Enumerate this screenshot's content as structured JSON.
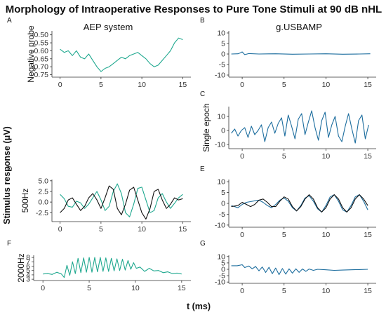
{
  "title": "Morphology of Intraoperative Responses to Pure Tone Stimuli at 90 dB nHL",
  "column_titles": [
    "AEP system",
    "g.USBAMP"
  ],
  "y_label": "Stimulus response (μV)",
  "x_label": "t (ms)",
  "colors": {
    "teal": "#1fa88f",
    "blue": "#1c6d9e",
    "black": "#111111"
  },
  "chart_data": [
    {
      "id": "A",
      "panel": "A",
      "type": "line",
      "ylabel": "Negative probe",
      "xlim": [
        -1,
        16
      ],
      "ylim": [
        -0.765,
        -0.475
      ],
      "xticks": [
        0,
        5,
        10,
        15
      ],
      "yticks": [
        -0.5,
        -0.55,
        -0.6,
        -0.65,
        -0.7,
        -0.75
      ],
      "ytick_labels": [
        "-0.50",
        "-0.55",
        "-0.60",
        "-0.65",
        "-0.70",
        "-0.75"
      ],
      "series": [
        {
          "color": "teal",
          "x": [
            0,
            0.5,
            1,
            1.5,
            2,
            2.5,
            3,
            3.5,
            4,
            4.5,
            5,
            5.5,
            6,
            6.5,
            7,
            7.5,
            8,
            8.5,
            9,
            9.5,
            10,
            10.5,
            11,
            11.5,
            12,
            12.5,
            13,
            13.5,
            14,
            14.5,
            15
          ],
          "y": [
            -0.59,
            -0.61,
            -0.6,
            -0.63,
            -0.6,
            -0.64,
            -0.65,
            -0.62,
            -0.66,
            -0.7,
            -0.73,
            -0.71,
            -0.7,
            -0.68,
            -0.66,
            -0.64,
            -0.65,
            -0.63,
            -0.62,
            -0.61,
            -0.63,
            -0.65,
            -0.68,
            -0.7,
            -0.69,
            -0.66,
            -0.63,
            -0.6,
            -0.55,
            -0.52,
            -0.53
          ]
        }
      ]
    },
    {
      "id": "B",
      "panel": "B",
      "type": "line",
      "ylabel": "",
      "xlim": [
        -1.6,
        16
      ],
      "ylim": [
        -11,
        11
      ],
      "xticks": [
        0,
        5,
        10,
        15
      ],
      "yticks": [
        10,
        5,
        0,
        -5,
        -10
      ],
      "series": [
        {
          "color": "blue",
          "x": [
            -1.3,
            -0.5,
            -0.2,
            0,
            0.3,
            0.8,
            2,
            4,
            6,
            8,
            10,
            12,
            14,
            15.3
          ],
          "y": [
            0,
            0.1,
            0.6,
            1.0,
            -0.3,
            0.2,
            0,
            0.1,
            -0.1,
            0,
            0.1,
            -0.1,
            0,
            0.1
          ]
        }
      ]
    },
    {
      "id": "C",
      "panel": "C",
      "type": "line",
      "ylabel": "Single epoch",
      "xlim": [
        -1.6,
        16
      ],
      "ylim": [
        -13,
        17
      ],
      "xticks": [
        0,
        5,
        10,
        15
      ],
      "yticks": [
        10,
        0,
        -10
      ],
      "series": [
        {
          "color": "blue",
          "x": [
            -1.3,
            -0.9,
            -0.5,
            -0.1,
            0.3,
            0.7,
            1.1,
            1.5,
            1.9,
            2.3,
            2.7,
            3.1,
            3.5,
            3.9,
            4.3,
            4.7,
            5.1,
            5.5,
            5.9,
            6.3,
            6.7,
            7.1,
            7.5,
            7.9,
            8.3,
            8.7,
            9.1,
            9.5,
            9.9,
            10.3,
            10.7,
            11.1,
            11.5,
            11.9,
            12.3,
            12.7,
            13.1,
            13.5,
            13.9,
            14.3,
            14.7,
            15.1
          ],
          "y": [
            -2,
            1,
            -4,
            0,
            2,
            -5,
            3,
            -3,
            0,
            4,
            -8,
            2,
            6,
            -2,
            5,
            9,
            -4,
            11,
            3,
            -6,
            8,
            12,
            -3,
            6,
            14,
            2,
            -7,
            7,
            13,
            -5,
            4,
            10,
            -4,
            -8,
            3,
            12,
            1,
            -9,
            7,
            11,
            -6,
            4
          ]
        }
      ]
    },
    {
      "id": "D",
      "panel": "D",
      "type": "line",
      "ylabel": "500Hz",
      "xlim": [
        -1,
        16
      ],
      "ylim": [
        -4.6,
        5.3
      ],
      "xticks": [
        0,
        5,
        10,
        15
      ],
      "yticks": [
        5,
        2.5,
        0,
        -2.5
      ],
      "ytick_labels": [
        "5.0",
        "2.5",
        "0.0",
        "-2.5"
      ],
      "series": [
        {
          "color": "teal",
          "x": [
            0,
            0.5,
            1,
            1.5,
            2,
            2.5,
            3,
            3.5,
            4,
            4.5,
            5,
            5.5,
            6,
            6.5,
            7,
            7.5,
            8,
            8.5,
            9,
            9.5,
            10,
            10.5,
            11,
            11.5,
            12,
            12.5,
            13,
            13.5,
            14,
            14.5,
            15
          ],
          "y": [
            1.8,
            0.8,
            -1.0,
            -1.2,
            0.2,
            -0.2,
            -1.5,
            -0.5,
            1.0,
            2.5,
            0.5,
            -2.0,
            -1.0,
            2.5,
            4.3,
            2.0,
            -2.5,
            -3.5,
            -0.5,
            3.2,
            3.5,
            0.5,
            -2.5,
            -2.0,
            1.0,
            2.0,
            0.0,
            -1.5,
            -0.3,
            1.0,
            1.8
          ]
        },
        {
          "color": "black",
          "x": [
            0,
            0.5,
            1,
            1.5,
            2,
            2.5,
            3,
            3.5,
            4,
            4.5,
            5,
            5.5,
            6,
            6.5,
            7,
            7.5,
            8,
            8.5,
            9,
            9.5,
            10,
            10.5,
            11,
            11.5,
            12,
            12.5,
            13,
            13.5,
            14,
            14.5,
            15
          ],
          "y": [
            -2.5,
            -1.5,
            0.5,
            1.0,
            -0.5,
            -2.0,
            -1.0,
            1.0,
            2.0,
            0.5,
            -1.5,
            1.0,
            3.8,
            3.0,
            -1.5,
            -3.0,
            -0.5,
            2.8,
            3.5,
            0.5,
            -2.5,
            -4.0,
            -1.5,
            2.5,
            3.0,
            0.5,
            -1.5,
            -0.5,
            1.0,
            0.5,
            0.8
          ]
        }
      ]
    },
    {
      "id": "E",
      "panel": "E",
      "type": "line",
      "ylabel": "",
      "xlim": [
        -1.6,
        16
      ],
      "ylim": [
        -11,
        11
      ],
      "xticks": [
        0,
        5,
        10,
        15
      ],
      "yticks": [
        10,
        5,
        0,
        -5,
        -10
      ],
      "series": [
        {
          "color": "blue",
          "x": [
            -1.3,
            -0.5,
            0,
            0.5,
            1,
            1.5,
            2,
            2.5,
            3,
            3.5,
            4,
            4.5,
            5,
            5.5,
            6,
            6.5,
            7,
            7.5,
            8,
            8.5,
            9,
            9.5,
            10,
            10.5,
            11,
            11.5,
            12,
            12.5,
            13,
            13.5,
            14,
            14.5,
            15
          ],
          "y": [
            -1,
            -2,
            -0.5,
            0.5,
            0.8,
            1.2,
            1.5,
            0.5,
            -1,
            -2,
            -0.5,
            1.5,
            2.5,
            1,
            -2,
            -3.5,
            -1,
            2.5,
            3.5,
            1,
            -2.5,
            -4,
            -1,
            3,
            4,
            1,
            -3,
            -4,
            -1,
            3,
            4,
            1,
            -3
          ]
        },
        {
          "color": "black",
          "x": [
            -1.3,
            -0.5,
            0,
            0.5,
            1,
            1.5,
            2,
            2.5,
            3,
            3.5,
            4,
            4.5,
            5,
            5.5,
            6,
            6.5,
            7,
            7.5,
            8,
            8.5,
            9,
            9.5,
            10,
            10.5,
            11,
            11.5,
            12,
            12.5,
            13,
            13.5,
            14,
            14.5,
            15
          ],
          "y": [
            -1.5,
            -1,
            0.5,
            -0.5,
            -1.5,
            -0.5,
            1.5,
            2,
            0.5,
            -1.5,
            -1.5,
            1,
            3,
            2,
            -1.5,
            -3.5,
            -1.5,
            2,
            4,
            2,
            -2,
            -4,
            -2,
            2,
            4,
            2,
            -2,
            -4,
            -2,
            2,
            4,
            2,
            -1
          ]
        }
      ]
    },
    {
      "id": "F",
      "panel": "F",
      "type": "line",
      "ylabel": "2000Hz",
      "xlim": [
        -1,
        16
      ],
      "ylim": [
        2.7,
        8.5
      ],
      "xticks": [
        0,
        5,
        10,
        15
      ],
      "yticks": [
        8,
        7,
        6,
        5,
        4,
        3
      ],
      "series": [
        {
          "color": "teal",
          "x": [
            0,
            0.5,
            1,
            1.5,
            2,
            2.3,
            2.6,
            2.9,
            3.2,
            3.5,
            3.8,
            4.1,
            4.4,
            4.7,
            5,
            5.3,
            5.6,
            5.9,
            6.2,
            6.5,
            6.8,
            7.1,
            7.4,
            7.7,
            8,
            8.3,
            8.6,
            8.9,
            9.2,
            9.5,
            9.8,
            10.1,
            10.5,
            11,
            11.5,
            12,
            12.5,
            13,
            13.5,
            14,
            14.5,
            15
          ],
          "y": [
            4.2,
            4.3,
            4.1,
            4.6,
            4.2,
            3.4,
            6.2,
            3.9,
            7.0,
            4.3,
            7.8,
            4.5,
            7.9,
            4.6,
            8.0,
            4.6,
            8.0,
            4.7,
            8.0,
            4.8,
            7.9,
            4.8,
            7.8,
            4.9,
            7.7,
            5.0,
            7.6,
            5.1,
            7.3,
            5.3,
            6.8,
            5.5,
            5.8,
            4.8,
            5.5,
            4.9,
            5.0,
            4.5,
            4.7,
            4.3,
            4.4,
            4.2
          ]
        }
      ]
    },
    {
      "id": "G",
      "panel": "G",
      "type": "line",
      "ylabel": "",
      "xlim": [
        -1.6,
        16
      ],
      "ylim": [
        -11,
        11
      ],
      "xticks": [
        0,
        5,
        10,
        15
      ],
      "yticks": [
        10,
        5,
        0,
        -5,
        -10
      ],
      "series": [
        {
          "color": "blue",
          "x": [
            -1.3,
            -0.6,
            0,
            0.3,
            0.8,
            1.2,
            1.6,
            2,
            2.4,
            2.8,
            3.2,
            3.6,
            4,
            4.4,
            4.8,
            5.2,
            5.6,
            6,
            6.4,
            6.8,
            7.2,
            7.6,
            8,
            8.5,
            9,
            10,
            11,
            12,
            13,
            14,
            15
          ],
          "y": [
            2.8,
            2.8,
            3.6,
            1.4,
            2.6,
            0.4,
            2.2,
            -1.2,
            1.8,
            -2.4,
            1.6,
            -3.4,
            1.0,
            -4.2,
            0.6,
            -3.8,
            0.4,
            -3.0,
            0.4,
            -2.4,
            0.3,
            -1.6,
            0.2,
            -0.8,
            0,
            -0.4,
            -0.8,
            -0.6,
            -0.4,
            -0.2,
            0
          ]
        }
      ]
    }
  ]
}
